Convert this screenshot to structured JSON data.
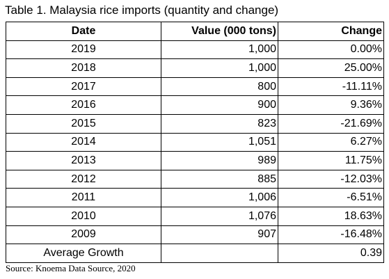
{
  "title": "Table 1. Malaysia rice imports (quantity and change)",
  "table": {
    "header": [
      "Date",
      "Value (000 tons)",
      "Change"
    ],
    "rows": [
      [
        "2019",
        "1,000",
        "0.00%"
      ],
      [
        "2018",
        "1,000",
        "25.00%"
      ],
      [
        "2017",
        "800",
        "-11.11%"
      ],
      [
        "2016",
        "900",
        "9.36%"
      ],
      [
        "2015",
        "823",
        "-21.69%"
      ],
      [
        "2014",
        "1,051",
        "6.27%"
      ],
      [
        "2013",
        "989",
        "11.75%"
      ],
      [
        "2012",
        "885",
        "-12.03%"
      ],
      [
        "2011",
        "1,006",
        "-6.51%"
      ],
      [
        "2010",
        "1,076",
        "18.63%"
      ],
      [
        "2009",
        "907",
        "-16.48%"
      ]
    ],
    "footer": {
      "label": "Average Growth",
      "value": "0.39"
    }
  },
  "source": "Source: Knoema Data Source, 2020"
}
